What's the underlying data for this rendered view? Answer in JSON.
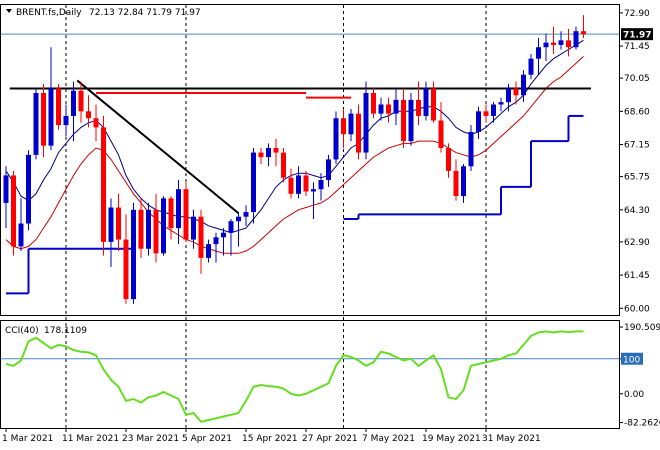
{
  "header": {
    "symbol": "BRENT.fs,Daily",
    "ohlc": "72.13 72.84 71.79 71.97"
  },
  "indicator": {
    "title": "CCI(40)",
    "value": "178.1109"
  },
  "colors": {
    "bull": "#0000cc",
    "bear": "#ff0000",
    "ma_fast": "#000080",
    "ma_slow": "#cc0000",
    "cci": "#66dd22",
    "price_tag_bg": "#000000",
    "level_tag_bg": "#2a6dbd",
    "grid_price": "#4a86c5"
  },
  "chart_data": [
    {
      "type": "candlestick",
      "title": "",
      "ylim": [
        59.75,
        73.2
      ],
      "y_ticks": [
        "72.90",
        "71.45",
        "70.05",
        "68.60",
        "67.15",
        "65.75",
        "64.30",
        "62.90",
        "61.45",
        "60.00"
      ],
      "y_tick_values": [
        72.9,
        71.45,
        70.05,
        68.6,
        67.15,
        65.75,
        64.3,
        62.9,
        61.45,
        60.0
      ],
      "x_labels": [
        "1 Mar 2021",
        "11 Mar 2021",
        "23 Mar 2021",
        "5 Apr 2021",
        "15 Apr 2021",
        "27 Apr 2021",
        "7 May 2021",
        "19 May 2021",
        "31 May 2021"
      ],
      "x_label_index": [
        0,
        8,
        16,
        24,
        32,
        40,
        48,
        56,
        64
      ],
      "vertical_dashed_at_index": [
        8,
        24,
        45,
        64
      ],
      "current_price_label": "71.97",
      "current_price": 71.97,
      "ohlc": [
        [
          64.6,
          66.2,
          63.5,
          65.8
        ],
        [
          65.8,
          66.0,
          62.3,
          62.7
        ],
        [
          62.7,
          64.8,
          62.5,
          63.7
        ],
        [
          63.7,
          66.9,
          63.4,
          66.7
        ],
        [
          66.7,
          69.6,
          66.5,
          69.4
        ],
        [
          69.4,
          69.8,
          66.6,
          67.1
        ],
        [
          67.1,
          71.4,
          66.9,
          69.6
        ],
        [
          69.6,
          69.8,
          67.8,
          68.0
        ],
        [
          68.0,
          68.9,
          67.5,
          68.4
        ],
        [
          68.4,
          69.9,
          67.3,
          69.5
        ],
        [
          69.5,
          69.9,
          68.1,
          68.6
        ],
        [
          68.6,
          69.3,
          67.9,
          68.3
        ],
        [
          68.3,
          68.9,
          67.3,
          67.9
        ],
        [
          67.9,
          68.4,
          62.3,
          62.9
        ],
        [
          62.9,
          64.8,
          61.8,
          64.4
        ],
        [
          64.4,
          65.0,
          62.5,
          63.0
        ],
        [
          63.0,
          64.1,
          60.2,
          60.4
        ],
        [
          60.4,
          64.6,
          60.2,
          64.3
        ],
        [
          64.3,
          64.8,
          62.2,
          62.6
        ],
        [
          62.6,
          64.6,
          62.3,
          64.3
        ],
        [
          64.3,
          65.0,
          62.0,
          62.4
        ],
        [
          62.4,
          64.9,
          62.3,
          64.8
        ],
        [
          64.8,
          64.9,
          63.0,
          63.5
        ],
        [
          63.5,
          65.6,
          62.8,
          65.2
        ],
        [
          65.2,
          65.5,
          62.9,
          63.0
        ],
        [
          63.0,
          64.3,
          62.6,
          64.0
        ],
        [
          64.0,
          64.3,
          61.5,
          62.2
        ],
        [
          62.2,
          63.0,
          62.0,
          62.8
        ],
        [
          62.8,
          63.3,
          62.0,
          63.1
        ],
        [
          63.1,
          63.5,
          62.3,
          63.3
        ],
        [
          63.3,
          63.9,
          62.3,
          63.8
        ],
        [
          63.8,
          64.2,
          62.7,
          64.0
        ],
        [
          64.0,
          64.5,
          63.6,
          64.2
        ],
        [
          64.2,
          67.0,
          63.7,
          66.8
        ],
        [
          66.8,
          67.0,
          66.3,
          66.6
        ],
        [
          66.6,
          67.2,
          66.2,
          67.0
        ],
        [
          67.0,
          67.4,
          66.2,
          66.8
        ],
        [
          66.8,
          67.0,
          65.5,
          65.7
        ],
        [
          65.7,
          66.1,
          64.8,
          65.0
        ],
        [
          65.0,
          66.2,
          64.8,
          65.8
        ],
        [
          65.8,
          66.0,
          64.9,
          65.1
        ],
        [
          65.1,
          65.5,
          63.9,
          65.2
        ],
        [
          65.2,
          65.9,
          64.7,
          65.6
        ],
        [
          65.6,
          66.7,
          65.3,
          66.5
        ],
        [
          66.5,
          68.6,
          66.3,
          68.3
        ],
        [
          68.3,
          68.7,
          67.0,
          67.6
        ],
        [
          67.6,
          68.7,
          67.3,
          68.5
        ],
        [
          68.5,
          68.9,
          66.5,
          66.8
        ],
        [
          66.8,
          69.9,
          66.5,
          69.4
        ],
        [
          69.4,
          69.6,
          68.3,
          68.5
        ],
        [
          68.5,
          69.2,
          68.2,
          68.9
        ],
        [
          68.9,
          69.2,
          68.1,
          68.5
        ],
        [
          68.5,
          69.6,
          68.0,
          69.1
        ],
        [
          69.1,
          69.6,
          67.0,
          67.3
        ],
        [
          67.3,
          69.4,
          67.1,
          69.1
        ],
        [
          69.1,
          69.9,
          68.0,
          68.4
        ],
        [
          68.4,
          69.9,
          68.2,
          69.6
        ],
        [
          69.6,
          69.9,
          68.1,
          68.2
        ],
        [
          68.2,
          69.0,
          66.8,
          67.0
        ],
        [
          67.0,
          67.2,
          65.7,
          66.0
        ],
        [
          66.0,
          66.5,
          64.7,
          64.9
        ],
        [
          64.9,
          66.3,
          64.6,
          66.2
        ],
        [
          66.2,
          68.0,
          66.0,
          67.7
        ],
        [
          67.7,
          68.8,
          67.4,
          68.6
        ],
        [
          68.6,
          68.9,
          68.1,
          68.4
        ],
        [
          68.4,
          69.0,
          68.1,
          68.9
        ],
        [
          68.9,
          69.2,
          68.6,
          69.0
        ],
        [
          69.0,
          69.8,
          68.6,
          69.6
        ],
        [
          69.6,
          69.9,
          68.9,
          69.3
        ],
        [
          69.3,
          70.4,
          69.0,
          70.2
        ],
        [
          70.2,
          71.1,
          70.0,
          70.9
        ],
        [
          70.9,
          71.8,
          70.2,
          71.4
        ],
        [
          71.4,
          72.0,
          70.8,
          71.6
        ],
        [
          71.6,
          72.3,
          71.1,
          71.5
        ],
        [
          71.5,
          72.1,
          71.3,
          71.7
        ],
        [
          71.7,
          72.2,
          71.0,
          71.4
        ],
        [
          71.4,
          72.3,
          71.3,
          72.1
        ],
        [
          72.1,
          72.8,
          71.8,
          71.97
        ]
      ],
      "overlay_lines": [
        {
          "name": "",
          "color_key": "ma_fast",
          "values": [
            66.0,
            65.5,
            64.9,
            64.7,
            65.0,
            65.6,
            66.1,
            66.8,
            67.2,
            67.6,
            67.9,
            68.1,
            68.2,
            67.9,
            67.3,
            66.7,
            65.8,
            65.2,
            64.8,
            64.5,
            64.3,
            64.2,
            64.1,
            64.0,
            64.0,
            63.9,
            63.8,
            63.6,
            63.5,
            63.4,
            63.3,
            63.4,
            63.5,
            63.9,
            64.3,
            64.8,
            65.3,
            65.6,
            65.8,
            65.9,
            65.9,
            65.8,
            65.7,
            65.8,
            66.2,
            66.6,
            67.0,
            67.2,
            67.6,
            68.0,
            68.3,
            68.4,
            68.6,
            68.6,
            68.6,
            68.7,
            68.8,
            68.8,
            68.6,
            68.3,
            67.9,
            67.7,
            67.6,
            67.7,
            67.9,
            68.2,
            68.5,
            68.8,
            69.0,
            69.3,
            69.8,
            70.2,
            70.6,
            70.9,
            71.1,
            71.3,
            71.5,
            71.7
          ]
        },
        {
          "name": "",
          "color_key": "ma_slow",
          "values": [
            63.0,
            62.7,
            62.6,
            62.7,
            63.0,
            63.5,
            64.0,
            64.6,
            65.2,
            65.8,
            66.3,
            66.7,
            67.0,
            66.9,
            66.5,
            66.0,
            65.5,
            65.0,
            64.6,
            64.2,
            63.9,
            63.6,
            63.4,
            63.2,
            63.0,
            62.9,
            62.7,
            62.6,
            62.5,
            62.4,
            62.4,
            62.4,
            62.5,
            62.7,
            63.0,
            63.3,
            63.6,
            63.9,
            64.1,
            64.3,
            64.4,
            64.5,
            64.6,
            64.8,
            65.1,
            65.4,
            65.7,
            66.0,
            66.3,
            66.6,
            66.8,
            67.0,
            67.1,
            67.2,
            67.2,
            67.3,
            67.3,
            67.3,
            67.2,
            67.0,
            66.8,
            66.7,
            66.6,
            66.7,
            66.9,
            67.2,
            67.5,
            67.8,
            68.1,
            68.4,
            68.8,
            69.2,
            69.6,
            69.9,
            70.1,
            70.4,
            70.7,
            71.0
          ]
        }
      ],
      "step_line": {
        "color_key": "bull",
        "segments": [
          {
            "from": 0,
            "to": 3,
            "value": 60.65
          },
          {
            "from": 3,
            "to": 5,
            "value": 62.6
          },
          {
            "from": 5,
            "to": 17,
            "value": 62.6
          },
          {
            "from": 45,
            "to": 47,
            "value": 63.9
          },
          {
            "from": 47,
            "to": 66,
            "value": 64.1
          },
          {
            "from": 66,
            "to": 70,
            "value": 65.3
          },
          {
            "from": 70,
            "to": 75,
            "value": 67.3
          },
          {
            "from": 75,
            "to": 77,
            "value": 68.4
          }
        ]
      },
      "resistance_red": [
        {
          "from": 12,
          "to": 40,
          "value": 69.4
        },
        {
          "from": 40,
          "to": 46,
          "value": 69.2
        }
      ],
      "trendlines": [
        {
          "x1": 0.5,
          "y1": 69.6,
          "x2": 78,
          "y2": 69.6
        },
        {
          "x1": 9.5,
          "y1": 69.95,
          "x2": 31,
          "y2": 64.15
        }
      ]
    },
    {
      "type": "line",
      "title": "CCI(40)",
      "ylim": [
        -95,
        205
      ],
      "y_ticks": [
        "190.5096",
        "100",
        "0.00",
        "-82.2626"
      ],
      "y_tick_values": [
        190.5096,
        100,
        0,
        -82.2626
      ],
      "reference_line": 100,
      "series": [
        {
          "name": "",
          "color_key": "cci",
          "values": [
            85,
            80,
            95,
            150,
            160,
            145,
            130,
            140,
            135,
            125,
            120,
            118,
            110,
            70,
            40,
            20,
            -20,
            -15,
            -25,
            -10,
            -5,
            5,
            -5,
            -15,
            -60,
            -55,
            -80,
            -75,
            -70,
            -65,
            -60,
            -55,
            -20,
            20,
            25,
            22,
            20,
            15,
            0,
            -5,
            0,
            10,
            20,
            30,
            80,
            110,
            105,
            95,
            80,
            90,
            120,
            115,
            105,
            95,
            100,
            80,
            95,
            110,
            70,
            -10,
            -15,
            10,
            80,
            85,
            90,
            95,
            100,
            110,
            115,
            140,
            165,
            175,
            178,
            175,
            178,
            176,
            178,
            178.1109
          ]
        }
      ]
    }
  ]
}
